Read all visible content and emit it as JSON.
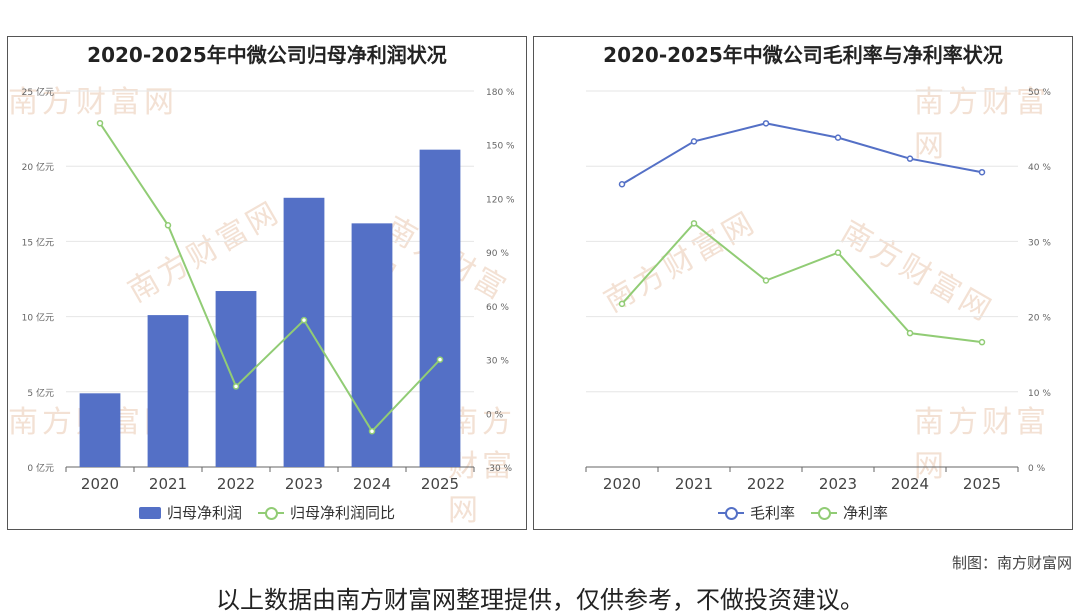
{
  "watermark": "南方财富网",
  "credit": "制图：南方财富网",
  "footer": "以上数据由南方财富网整理提供，仅供参考，不做投资建议。",
  "colors": {
    "bar": "#5470c6",
    "line_green": "#91cc75",
    "line_blue": "#5470c6"
  },
  "chart_data": [
    {
      "type": "bar",
      "title": "2020-2025年中微公司归母净利润状况",
      "categories": [
        "2020",
        "2021",
        "2022",
        "2023",
        "2024",
        "2025"
      ],
      "series": [
        {
          "name": "归母净利润",
          "type": "bar",
          "axis": "left",
          "values": [
            4.9,
            10.1,
            11.7,
            17.9,
            16.2,
            21.1
          ]
        },
        {
          "name": "归母净利润同比",
          "type": "line",
          "axis": "right",
          "values": [
            162,
            105,
            15,
            52,
            -10,
            30
          ]
        }
      ],
      "ylim_left": [
        0,
        25
      ],
      "ylim_right": [
        -30,
        180
      ],
      "yticks_left": [
        "0 亿元",
        "5 亿元",
        "10 亿元",
        "15 亿元",
        "20 亿元",
        "25 亿元"
      ],
      "yticks_right": [
        "-30 %",
        "0 %",
        "30 %",
        "60 %",
        "90 %",
        "120 %",
        "150 %",
        "180 %"
      ],
      "legend": "bottom",
      "grid": true
    },
    {
      "type": "line",
      "title": "2020-2025年中微公司毛利率与净利率状况",
      "categories": [
        "2020",
        "2021",
        "2022",
        "2023",
        "2024",
        "2025"
      ],
      "series": [
        {
          "name": "毛利率",
          "values": [
            37.6,
            43.3,
            45.7,
            43.8,
            41.0,
            39.2
          ]
        },
        {
          "name": "净利率",
          "values": [
            21.7,
            32.4,
            24.8,
            28.5,
            17.8,
            16.6
          ]
        }
      ],
      "ylim_right": [
        0,
        50
      ],
      "yticks_right": [
        "0 %",
        "10 %",
        "20 %",
        "30 %",
        "40 %",
        "50 %"
      ],
      "legend": "bottom",
      "grid": true
    }
  ]
}
